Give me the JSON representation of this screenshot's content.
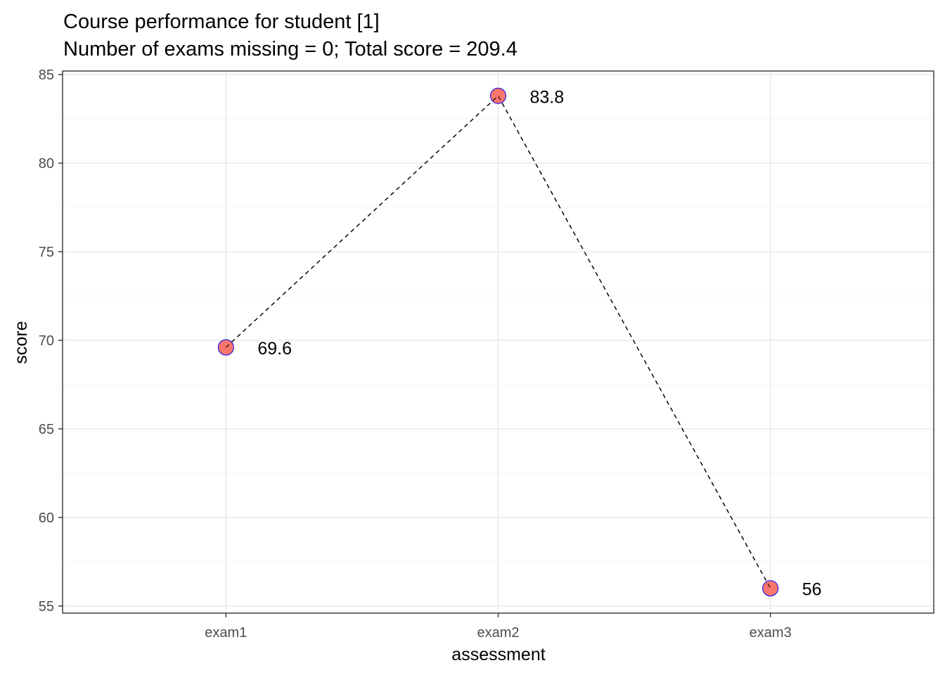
{
  "chart_data": {
    "type": "line",
    "title": "Course performance for student [1]",
    "subtitle": "Number of exams missing = 0; Total score = 209.4",
    "xlabel": "assessment",
    "ylabel": "score",
    "categories": [
      "exam1",
      "exam2",
      "exam3"
    ],
    "series": [
      {
        "values": [
          69.6,
          83.8,
          56
        ]
      }
    ],
    "data_labels": [
      "69.6",
      "83.8",
      "56"
    ],
    "ylim": [
      54.6,
      85.2
    ],
    "y_ticks": [
      55,
      60,
      65,
      70,
      75,
      80,
      85
    ],
    "y_tick_labels": [
      "55",
      "60",
      "65",
      "70",
      "75",
      "80",
      "85"
    ],
    "line_style": "dashed",
    "grid": true,
    "colors": {
      "point_fill": "#f8766d",
      "point_stroke": "#0000ff",
      "line": "#000000",
      "grid_major": "#ebebeb",
      "grid_minor": "#f5f5f5",
      "panel_border": "#333333",
      "tick_text": "#4d4d4d"
    }
  }
}
